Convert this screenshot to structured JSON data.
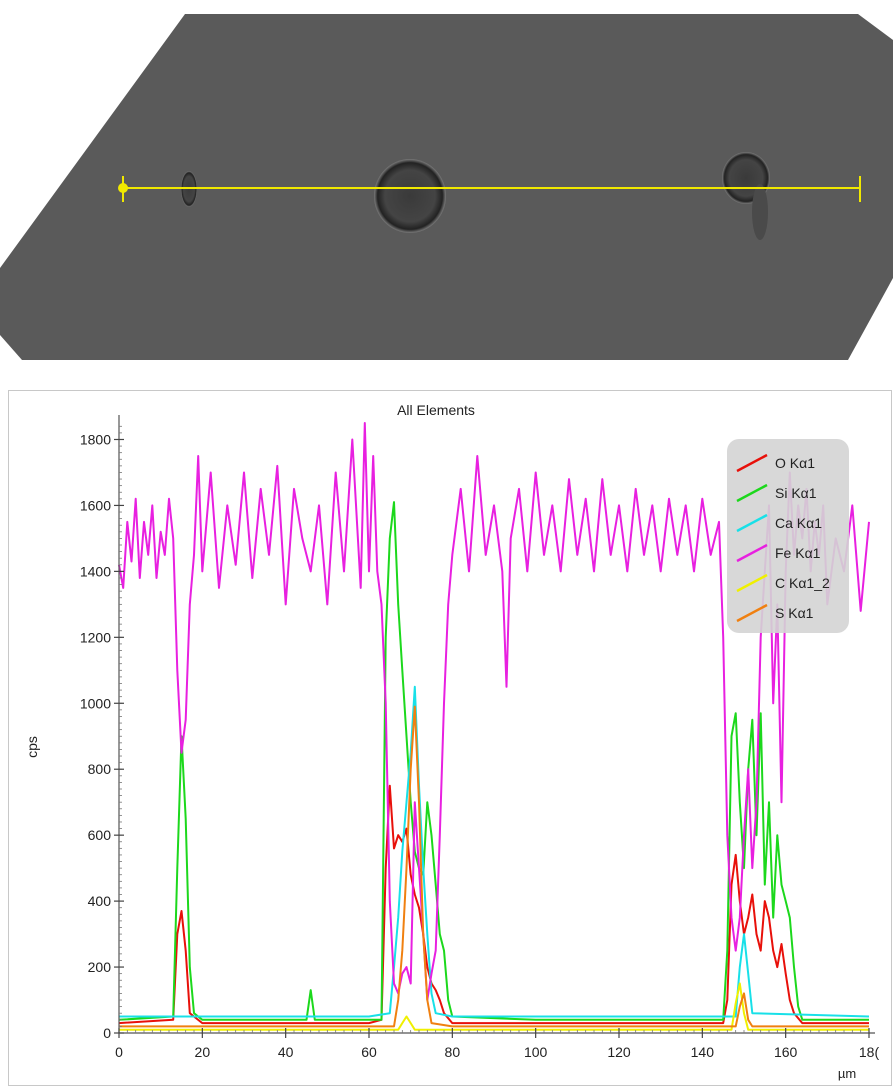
{
  "image": {
    "description_icon": "sem-micrograph",
    "scan_line_color": "#f0e800"
  },
  "chart_data": {
    "type": "line",
    "title": "All Elements",
    "xlabel": "µm",
    "ylabel": "cps",
    "xlim": [
      0,
      180
    ],
    "ylim": [
      0,
      1850
    ],
    "xticks": [
      0,
      20,
      40,
      60,
      80,
      100,
      120,
      140,
      160,
      "18("
    ],
    "yticks": [
      0,
      200,
      400,
      600,
      800,
      1000,
      1200,
      1400,
      1600,
      1800
    ],
    "legend_position": "top-right",
    "series": [
      {
        "name": "O Kα1",
        "color": "#e8100a",
        "points": [
          [
            0,
            30
          ],
          [
            13,
            40
          ],
          [
            14,
            300
          ],
          [
            15,
            370
          ],
          [
            16,
            250
          ],
          [
            17,
            60
          ],
          [
            20,
            30
          ],
          [
            40,
            30
          ],
          [
            60,
            30
          ],
          [
            63,
            40
          ],
          [
            64,
            500
          ],
          [
            65,
            750
          ],
          [
            66,
            560
          ],
          [
            67,
            600
          ],
          [
            68,
            580
          ],
          [
            69,
            620
          ],
          [
            70,
            480
          ],
          [
            71,
            420
          ],
          [
            72,
            380
          ],
          [
            73,
            300
          ],
          [
            74,
            200
          ],
          [
            75,
            150
          ],
          [
            76,
            130
          ],
          [
            77,
            100
          ],
          [
            78,
            60
          ],
          [
            80,
            30
          ],
          [
            100,
            30
          ],
          [
            120,
            30
          ],
          [
            145,
            30
          ],
          [
            146,
            100
          ],
          [
            147,
            450
          ],
          [
            148,
            540
          ],
          [
            149,
            400
          ],
          [
            150,
            300
          ],
          [
            151,
            350
          ],
          [
            152,
            420
          ],
          [
            153,
            300
          ],
          [
            154,
            250
          ],
          [
            155,
            400
          ],
          [
            156,
            350
          ],
          [
            157,
            250
          ],
          [
            158,
            200
          ],
          [
            159,
            270
          ],
          [
            160,
            180
          ],
          [
            161,
            100
          ],
          [
            162,
            60
          ],
          [
            164,
            30
          ],
          [
            180,
            30
          ]
        ]
      },
      {
        "name": "Si Kα1",
        "color": "#1cd81c",
        "points": [
          [
            0,
            40
          ],
          [
            13,
            50
          ],
          [
            14,
            500
          ],
          [
            15,
            900
          ],
          [
            16,
            650
          ],
          [
            17,
            200
          ],
          [
            18,
            60
          ],
          [
            20,
            40
          ],
          [
            40,
            40
          ],
          [
            45,
            40
          ],
          [
            46,
            130
          ],
          [
            47,
            40
          ],
          [
            60,
            40
          ],
          [
            63,
            40
          ],
          [
            64,
            1200
          ],
          [
            65,
            1500
          ],
          [
            66,
            1610
          ],
          [
            67,
            1300
          ],
          [
            68,
            1100
          ],
          [
            69,
            900
          ],
          [
            70,
            700
          ],
          [
            71,
            550
          ],
          [
            72,
            500
          ],
          [
            73,
            480
          ],
          [
            74,
            700
          ],
          [
            75,
            600
          ],
          [
            76,
            450
          ],
          [
            77,
            300
          ],
          [
            78,
            250
          ],
          [
            79,
            100
          ],
          [
            80,
            50
          ],
          [
            100,
            40
          ],
          [
            120,
            40
          ],
          [
            145,
            40
          ],
          [
            146,
            250
          ],
          [
            147,
            900
          ],
          [
            148,
            970
          ],
          [
            149,
            700
          ],
          [
            150,
            500
          ],
          [
            151,
            800
          ],
          [
            152,
            950
          ],
          [
            153,
            600
          ],
          [
            154,
            970
          ],
          [
            155,
            450
          ],
          [
            156,
            700
          ],
          [
            157,
            350
          ],
          [
            158,
            600
          ],
          [
            159,
            450
          ],
          [
            160,
            400
          ],
          [
            161,
            350
          ],
          [
            162,
            200
          ],
          [
            163,
            80
          ],
          [
            164,
            40
          ],
          [
            180,
            40
          ]
        ]
      },
      {
        "name": "Ca Kα1",
        "color": "#18e0e8",
        "points": [
          [
            0,
            50
          ],
          [
            20,
            50
          ],
          [
            40,
            50
          ],
          [
            60,
            50
          ],
          [
            65,
            60
          ],
          [
            66,
            200
          ],
          [
            67,
            350
          ],
          [
            68,
            550
          ],
          [
            69,
            700
          ],
          [
            70,
            850
          ],
          [
            71,
            1050
          ],
          [
            72,
            750
          ],
          [
            73,
            500
          ],
          [
            74,
            300
          ],
          [
            75,
            120
          ],
          [
            76,
            60
          ],
          [
            80,
            50
          ],
          [
            100,
            50
          ],
          [
            120,
            50
          ],
          [
            148,
            50
          ],
          [
            149,
            200
          ],
          [
            150,
            300
          ],
          [
            151,
            180
          ],
          [
            152,
            60
          ],
          [
            180,
            50
          ]
        ]
      },
      {
        "name": "Fe Kα1",
        "color": "#e820e0",
        "points": [
          [
            0,
            1420
          ],
          [
            1,
            1350
          ],
          [
            2,
            1550
          ],
          [
            3,
            1430
          ],
          [
            4,
            1620
          ],
          [
            5,
            1380
          ],
          [
            6,
            1550
          ],
          [
            7,
            1450
          ],
          [
            8,
            1600
          ],
          [
            9,
            1380
          ],
          [
            10,
            1520
          ],
          [
            11,
            1450
          ],
          [
            12,
            1620
          ],
          [
            13,
            1500
          ],
          [
            14,
            1100
          ],
          [
            15,
            850
          ],
          [
            16,
            950
          ],
          [
            17,
            1300
          ],
          [
            18,
            1450
          ],
          [
            19,
            1750
          ],
          [
            20,
            1400
          ],
          [
            22,
            1700
          ],
          [
            24,
            1350
          ],
          [
            26,
            1600
          ],
          [
            28,
            1420
          ],
          [
            30,
            1700
          ],
          [
            32,
            1380
          ],
          [
            34,
            1650
          ],
          [
            36,
            1450
          ],
          [
            38,
            1720
          ],
          [
            40,
            1300
          ],
          [
            42,
            1650
          ],
          [
            44,
            1500
          ],
          [
            46,
            1400
          ],
          [
            48,
            1600
          ],
          [
            50,
            1300
          ],
          [
            52,
            1700
          ],
          [
            54,
            1400
          ],
          [
            56,
            1800
          ],
          [
            58,
            1350
          ],
          [
            59,
            1850
          ],
          [
            60,
            1400
          ],
          [
            61,
            1750
          ],
          [
            62,
            1400
          ],
          [
            63,
            1300
          ],
          [
            64,
            1000
          ],
          [
            65,
            400
          ],
          [
            66,
            150
          ],
          [
            67,
            120
          ],
          [
            68,
            180
          ],
          [
            69,
            200
          ],
          [
            70,
            150
          ],
          [
            71,
            700
          ],
          [
            72,
            500
          ],
          [
            73,
            300
          ],
          [
            74,
            100
          ],
          [
            75,
            180
          ],
          [
            76,
            250
          ],
          [
            77,
            600
          ],
          [
            78,
            1000
          ],
          [
            79,
            1300
          ],
          [
            80,
            1450
          ],
          [
            82,
            1650
          ],
          [
            84,
            1400
          ],
          [
            86,
            1750
          ],
          [
            88,
            1450
          ],
          [
            90,
            1600
          ],
          [
            92,
            1400
          ],
          [
            93,
            1050
          ],
          [
            94,
            1500
          ],
          [
            96,
            1650
          ],
          [
            98,
            1400
          ],
          [
            100,
            1700
          ],
          [
            102,
            1450
          ],
          [
            104,
            1600
          ],
          [
            106,
            1400
          ],
          [
            108,
            1680
          ],
          [
            110,
            1450
          ],
          [
            112,
            1620
          ],
          [
            114,
            1400
          ],
          [
            116,
            1680
          ],
          [
            118,
            1450
          ],
          [
            120,
            1600
          ],
          [
            122,
            1400
          ],
          [
            124,
            1650
          ],
          [
            126,
            1450
          ],
          [
            128,
            1600
          ],
          [
            130,
            1400
          ],
          [
            132,
            1620
          ],
          [
            134,
            1450
          ],
          [
            136,
            1600
          ],
          [
            138,
            1400
          ],
          [
            140,
            1620
          ],
          [
            142,
            1450
          ],
          [
            144,
            1550
          ],
          [
            145,
            1200
          ],
          [
            146,
            600
          ],
          [
            147,
            350
          ],
          [
            148,
            250
          ],
          [
            149,
            350
          ],
          [
            150,
            600
          ],
          [
            151,
            800
          ],
          [
            152,
            500
          ],
          [
            153,
            700
          ],
          [
            154,
            1200
          ],
          [
            155,
            1400
          ],
          [
            156,
            1600
          ],
          [
            157,
            1000
          ],
          [
            158,
            1300
          ],
          [
            159,
            700
          ],
          [
            160,
            1400
          ],
          [
            161,
            1700
          ],
          [
            162,
            1450
          ],
          [
            163,
            1600
          ],
          [
            164,
            1500
          ],
          [
            165,
            1650
          ],
          [
            166,
            1400
          ],
          [
            167,
            1550
          ],
          [
            168,
            1450
          ],
          [
            169,
            1600
          ],
          [
            170,
            1300
          ],
          [
            172,
            1500
          ],
          [
            174,
            1400
          ],
          [
            176,
            1600
          ],
          [
            178,
            1280
          ],
          [
            180,
            1550
          ]
        ]
      },
      {
        "name": "C Kα1_2",
        "color": "#f0f000",
        "points": [
          [
            0,
            10
          ],
          [
            20,
            10
          ],
          [
            40,
            10
          ],
          [
            60,
            10
          ],
          [
            67,
            10
          ],
          [
            68,
            30
          ],
          [
            69,
            50
          ],
          [
            70,
            30
          ],
          [
            71,
            10
          ],
          [
            100,
            10
          ],
          [
            140,
            10
          ],
          [
            147,
            10
          ],
          [
            148,
            90
          ],
          [
            149,
            150
          ],
          [
            150,
            60
          ],
          [
            151,
            10
          ],
          [
            180,
            10
          ]
        ]
      },
      {
        "name": "S Kα1",
        "color": "#f08010",
        "points": [
          [
            0,
            20
          ],
          [
            20,
            20
          ],
          [
            40,
            20
          ],
          [
            60,
            20
          ],
          [
            66,
            20
          ],
          [
            67,
            100
          ],
          [
            68,
            250
          ],
          [
            69,
            500
          ],
          [
            70,
            800
          ],
          [
            71,
            990
          ],
          [
            72,
            700
          ],
          [
            73,
            300
          ],
          [
            74,
            100
          ],
          [
            75,
            30
          ],
          [
            80,
            20
          ],
          [
            120,
            20
          ],
          [
            148,
            20
          ],
          [
            149,
            80
          ],
          [
            150,
            120
          ],
          [
            151,
            40
          ],
          [
            152,
            20
          ],
          [
            180,
            20
          ]
        ]
      }
    ]
  }
}
